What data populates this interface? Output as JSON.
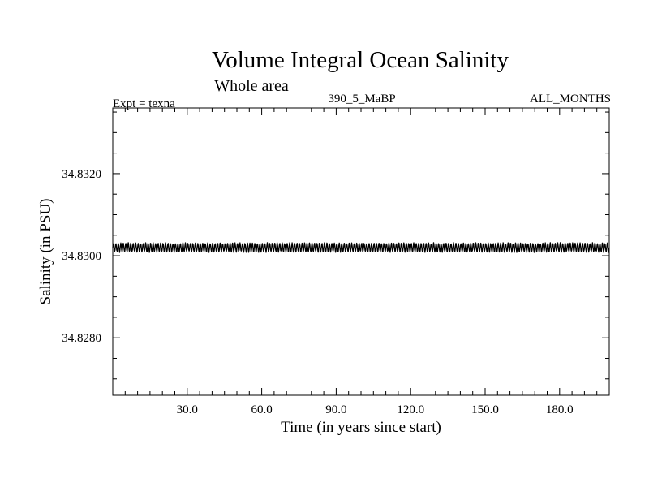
{
  "chart_data": {
    "type": "line",
    "title": "Volume Integral Ocean Salinity",
    "subtitle": "Whole area",
    "experiment_label": "Expt = texna",
    "run_label": "390_5_MaBP",
    "months_label": "ALL_MONTHS",
    "xlabel": "Time (in years since start)",
    "ylabel": "Salinity (in PSU)",
    "xlim": [
      0,
      200
    ],
    "ylim": [
      34.8266,
      34.8336
    ],
    "x_major_ticks": [
      30,
      60,
      90,
      120,
      150,
      180
    ],
    "x_tick_labels": [
      "30.0",
      "60.0",
      "90.0",
      "120.0",
      "150.0",
      "180.0"
    ],
    "x_minor_step": 5,
    "y_major_ticks": [
      34.828,
      34.83,
      34.832
    ],
    "y_tick_labels": [
      "34.8280",
      "34.8300",
      "34.8320"
    ],
    "y_minor_step": 0.0005,
    "series": [
      {
        "name": "salinity",
        "description": "monthly values oscillating annually about the mean",
        "mean": 34.8302,
        "annual_amplitude": 0.0001,
        "samples_per_year": 12,
        "x_start": 0,
        "x_end": 200,
        "color": "#000000"
      }
    ]
  }
}
